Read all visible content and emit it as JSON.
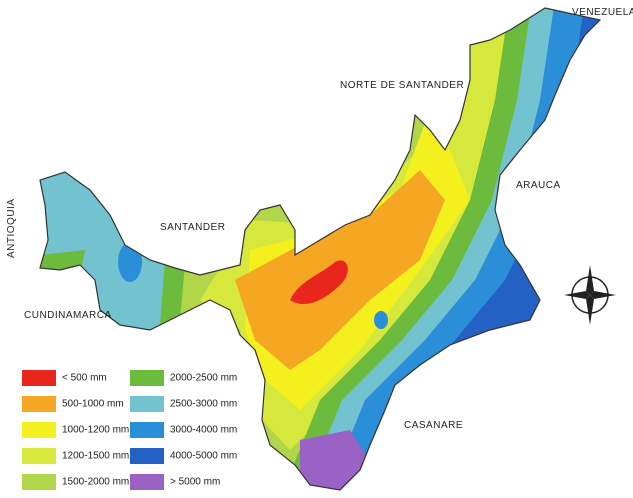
{
  "regions": [
    {
      "label": "VENEZUELA"
    },
    {
      "label": "NORTE DE SANTANDER"
    },
    {
      "label": "ARAUCA"
    },
    {
      "label": "SANTANDER"
    },
    {
      "label": "ANTIOQUIA"
    },
    {
      "label": "CUNDINAMARCA"
    },
    {
      "label": "CASANARE"
    }
  ],
  "legend": [
    {
      "label": "< 500 mm",
      "color": "#e8261c"
    },
    {
      "label": "500-1000 mm",
      "color": "#f5a623"
    },
    {
      "label": "1000-1200 mm",
      "color": "#f4f01e"
    },
    {
      "label": "1200-1500 mm",
      "color": "#d6e83c"
    },
    {
      "label": "1500-2000 mm",
      "color": "#b2d64a"
    },
    {
      "label": "2000-2500 mm",
      "color": "#6cbb3c"
    },
    {
      "label": "2500-3000 mm",
      "color": "#72c3cf"
    },
    {
      "label": "3000-4000 mm",
      "color": "#2a8fd8"
    },
    {
      "label": "4000-5000 mm",
      "color": "#2361c4"
    },
    {
      "label": "> 5000 mm",
      "color": "#9b62c6"
    }
  ]
}
